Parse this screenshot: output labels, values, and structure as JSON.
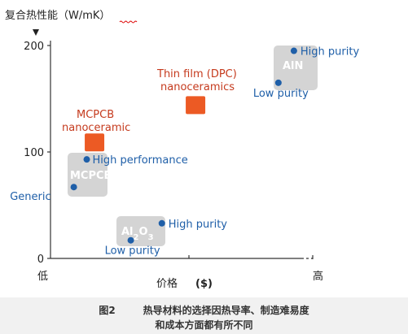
{
  "chart_data": {
    "type": "scatter",
    "ylabel": "复合热性能（W/mK）",
    "ylabel_wavy_underline": "mK",
    "xlabel": "价格",
    "xlabel_unit": "($)",
    "x_low_label": "低",
    "x_high_label": "高",
    "yticks": [
      0,
      100,
      200
    ],
    "ylim": [
      0,
      200
    ],
    "xlim": [
      0,
      1
    ],
    "grid": false,
    "colors": {
      "dot": "#1f5fa8",
      "orange": "#ec5a24",
      "box": "#d4d4d4",
      "box_text": "#ffffff",
      "orange_text": "#c53a1d",
      "blue_text": "#1f5fa8",
      "axis": "#333333"
    },
    "groups": [
      {
        "box_label": "MCPCB",
        "box_style": "gray",
        "points": [
          {
            "label": "Generic",
            "x": 0.09,
            "y": 67
          },
          {
            "label": "High performance",
            "x": 0.14,
            "y": 93
          }
        ]
      },
      {
        "box_label": "Al2O3",
        "box_style": "gray",
        "points": [
          {
            "label": "Low purity",
            "x": 0.31,
            "y": 17
          },
          {
            "label": "High purity",
            "x": 0.43,
            "y": 33
          }
        ]
      },
      {
        "box_label": "AlN",
        "box_style": "gray",
        "points": [
          {
            "label": "Low purity",
            "x": 0.88,
            "y": 165
          },
          {
            "label": "High purity",
            "x": 0.94,
            "y": 195
          }
        ]
      },
      {
        "box_label": "",
        "box_style": "orange",
        "title_lines": [
          "MCPCB",
          "nanoceramic"
        ],
        "points": [
          {
            "label": "",
            "x": 0.17,
            "y": 109
          }
        ]
      },
      {
        "box_label": "",
        "box_style": "orange",
        "title_lines": [
          "Thin film (DPC)",
          "nanoceramics"
        ],
        "points": [
          {
            "label": "",
            "x": 0.56,
            "y": 144
          }
        ]
      }
    ]
  },
  "caption": {
    "figure_number": "图2",
    "line1": "热导材料的选择因热导率、制造难易度",
    "line2": "和成本方面都有所不同"
  }
}
